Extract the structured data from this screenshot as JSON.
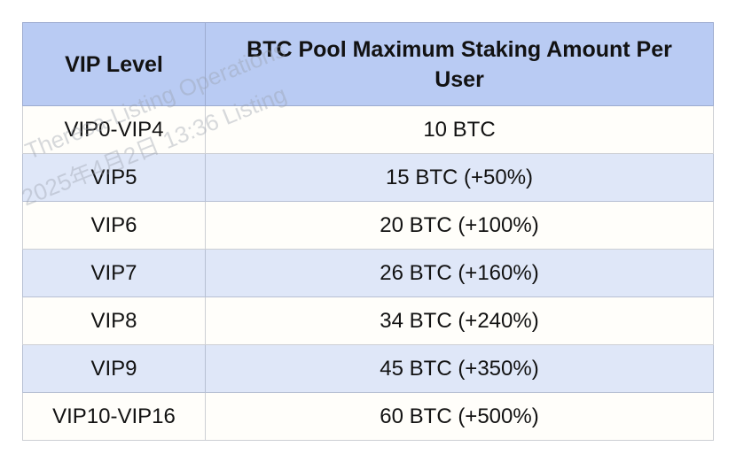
{
  "watermark": {
    "line1": "Theresa-Listing Operations",
    "line2": "2025年4月2日 13:36 Listing"
  },
  "table": {
    "columns": {
      "vip_level": "VIP Level",
      "max_staking": "BTC Pool Maximum Staking Amount Per User"
    },
    "rows": [
      {
        "vip_level": "VIP0-VIP4",
        "max_staking": "10 BTC"
      },
      {
        "vip_level": "VIP5",
        "max_staking": "15 BTC (+50%)"
      },
      {
        "vip_level": "VIP6",
        "max_staking": "20 BTC (+100%)"
      },
      {
        "vip_level": "VIP7",
        "max_staking": "26 BTC (+160%)"
      },
      {
        "vip_level": "VIP8",
        "max_staking": "34 BTC (+240%)"
      },
      {
        "vip_level": "VIP9",
        "max_staking": "45 BTC (+350%)"
      },
      {
        "vip_level": "VIP10-VIP16",
        "max_staking": "60 BTC (+500%)"
      }
    ],
    "colors": {
      "header_bg": "#b9cbf3",
      "row_bg": "#fffefa",
      "row_alt_bg": "#dfe7f8",
      "border": "#c9d1e3",
      "text": "#121212",
      "watermark": "#999fab"
    }
  }
}
